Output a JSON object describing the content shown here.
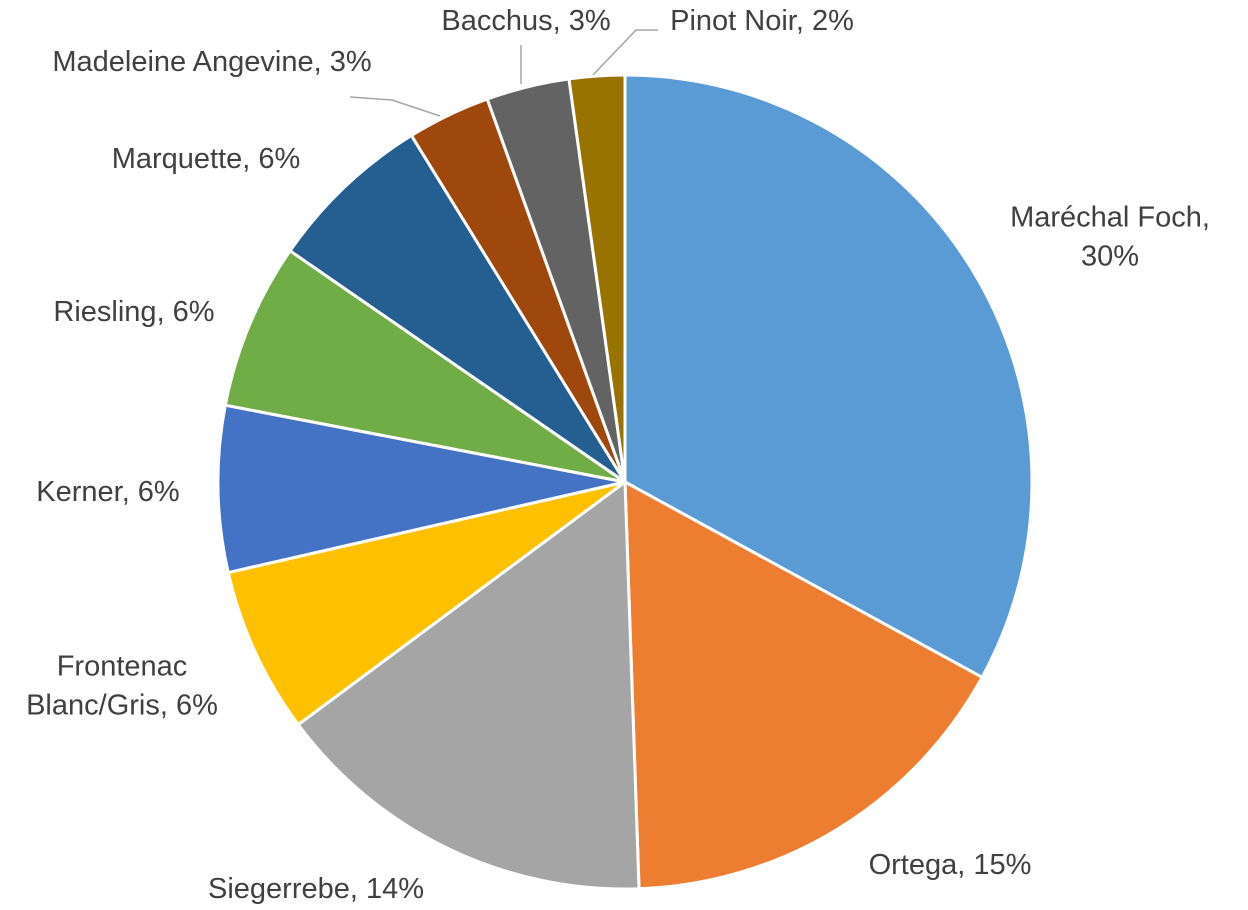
{
  "chart_data": {
    "type": "pie",
    "values": [
      30,
      15,
      14,
      6,
      6,
      6,
      6,
      3,
      3,
      2
    ],
    "value_labels": [
      "Maréchal Foch,\n30%",
      "Ortega, 15%",
      "Siegerrebe, 14%",
      "Frontenac\nBlanc/Gris, 6%",
      "Kerner, 6%",
      "Riesling, 6%",
      "Marquette, 6%",
      "Madeleine Angevine, 3%",
      "Bacchus, 3%",
      "Pinot Noir, 2%"
    ],
    "colors": [
      "#5B9BD5",
      "#ED7D31",
      "#A5A5A5",
      "#FFC000",
      "#4472C4",
      "#70AD47",
      "#255E91",
      "#9E480E",
      "#636363",
      "#997300"
    ]
  }
}
